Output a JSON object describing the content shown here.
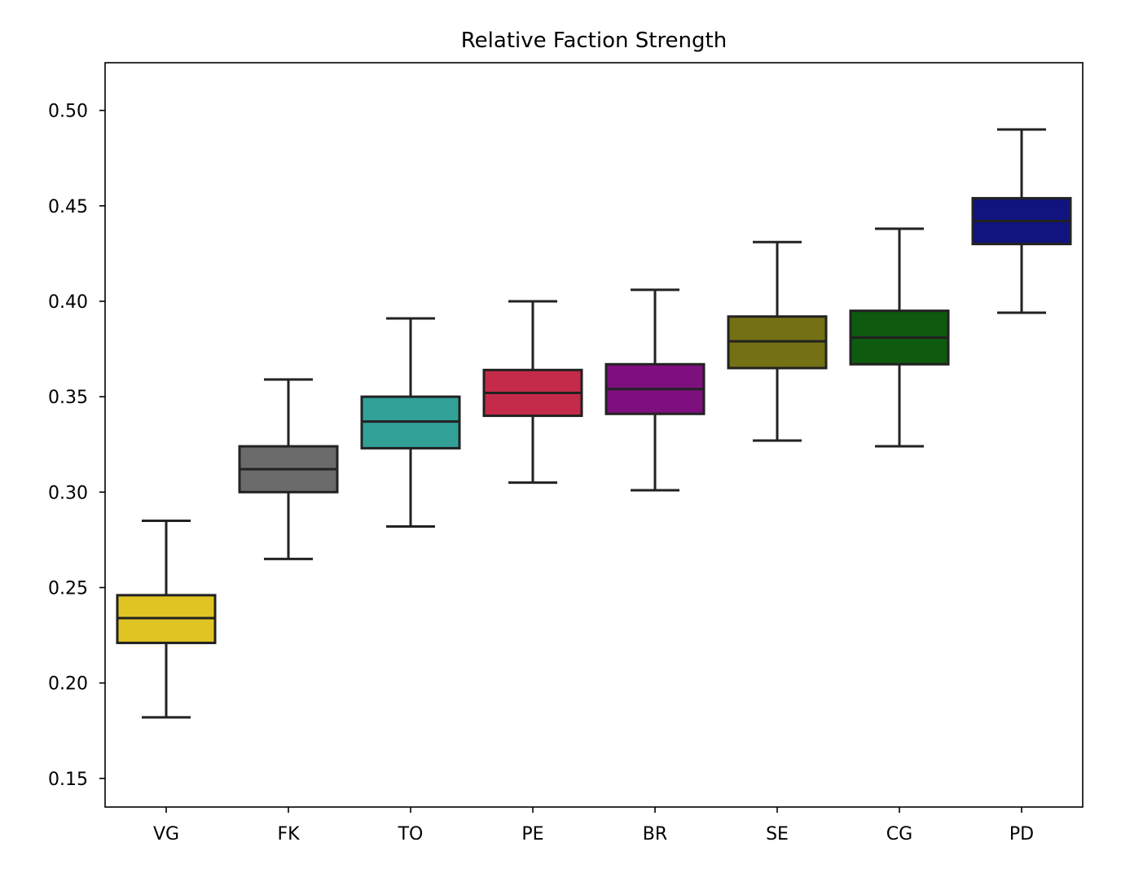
{
  "chart_data": {
    "type": "box",
    "title": "Relative Faction Strength",
    "xlabel": "",
    "ylabel": "",
    "categories": [
      "VG",
      "FK",
      "TO",
      "PE",
      "BR",
      "SE",
      "CG",
      "PD"
    ],
    "ylim": [
      0.135,
      0.525
    ],
    "yticks": [
      0.15,
      0.2,
      0.25,
      0.3,
      0.35,
      0.4,
      0.45,
      0.5
    ],
    "ytick_labels": [
      "0.15",
      "0.20",
      "0.25",
      "0.30",
      "0.35",
      "0.40",
      "0.45",
      "0.50"
    ],
    "grid": false,
    "boxes": [
      {
        "category": "VG",
        "whisker_low": 0.182,
        "q1": 0.221,
        "median": 0.234,
        "q3": 0.246,
        "whisker_high": 0.285,
        "color": "#E0C423"
      },
      {
        "category": "FK",
        "whisker_low": 0.265,
        "q1": 0.3,
        "median": 0.312,
        "q3": 0.324,
        "whisker_high": 0.359,
        "color": "#6B6B6B"
      },
      {
        "category": "TO",
        "whisker_low": 0.282,
        "q1": 0.323,
        "median": 0.337,
        "q3": 0.35,
        "whisker_high": 0.391,
        "color": "#31A198"
      },
      {
        "category": "PE",
        "whisker_low": 0.305,
        "q1": 0.34,
        "median": 0.352,
        "q3": 0.364,
        "whisker_high": 0.4,
        "color": "#C42B4A"
      },
      {
        "category": "BR",
        "whisker_low": 0.301,
        "q1": 0.341,
        "median": 0.354,
        "q3": 0.367,
        "whisker_high": 0.406,
        "color": "#7E0F7E"
      },
      {
        "category": "SE",
        "whisker_low": 0.327,
        "q1": 0.365,
        "median": 0.379,
        "q3": 0.392,
        "whisker_high": 0.431,
        "color": "#737114"
      },
      {
        "category": "CG",
        "whisker_low": 0.324,
        "q1": 0.367,
        "median": 0.381,
        "q3": 0.395,
        "whisker_high": 0.438,
        "color": "#0E5A0E"
      },
      {
        "category": "PD",
        "whisker_low": 0.394,
        "q1": 0.43,
        "median": 0.442,
        "q3": 0.454,
        "whisker_high": 0.49,
        "color": "#11137E"
      }
    ]
  }
}
